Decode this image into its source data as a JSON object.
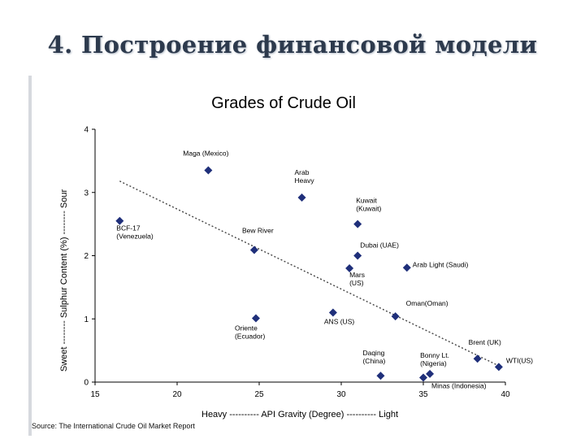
{
  "slide": {
    "title": "4. Построение финансовой модели"
  },
  "source": "Source: The International Crude Oil Market Report",
  "colors": {
    "title": "#2d3a4d",
    "marker": "#1f2f7a",
    "trendline": "#444444",
    "axis": "#000000"
  },
  "chart_data": {
    "type": "scatter",
    "title": "Grades of Crude Oil",
    "xlabel": "Heavy ---------- API Gravity (Degree) ---------- Light",
    "ylabel": "Sweet -------- Sulphur Content (%) -------- Sour",
    "xlim": [
      15,
      40
    ],
    "ylim": [
      0,
      4
    ],
    "xticks": [
      "15",
      "20",
      "25",
      "30",
      "35",
      "40"
    ],
    "yticks": [
      "0",
      "1",
      "2",
      "3",
      "4"
    ],
    "grid": false,
    "marker": "diamond",
    "trendline": {
      "style": "dotted",
      "x": [
        16.5,
        39.5
      ],
      "y": [
        3.18,
        0.27
      ]
    },
    "points": [
      {
        "label": "Maga (Mexico)",
        "x": 21.9,
        "y": 3.35
      },
      {
        "label": "Arab\nHeavy",
        "x": 27.6,
        "y": 2.92
      },
      {
        "label": "Kuwait\n(Kuwait)",
        "x": 31.0,
        "y": 2.5
      },
      {
        "label": "BCF-17\n(Venezuela)",
        "x": 16.5,
        "y": 2.55
      },
      {
        "label": "Bew River",
        "x": 24.7,
        "y": 2.09
      },
      {
        "label": "Dubai (UAE)",
        "x": 31.0,
        "y": 2.0
      },
      {
        "label": "Mars\n(US)",
        "x": 30.5,
        "y": 1.8
      },
      {
        "label": "Arab Light (Saudi)",
        "x": 34.0,
        "y": 1.81
      },
      {
        "label": "Oriente\n(Ecuador)",
        "x": 24.8,
        "y": 1.01
      },
      {
        "label": "ANS (US)",
        "x": 29.5,
        "y": 1.1
      },
      {
        "label": "Oman(Oman)",
        "x": 33.3,
        "y": 1.04
      },
      {
        "label": "Brent (UK)",
        "x": 38.3,
        "y": 0.37
      },
      {
        "label": "Daqing\n(China)",
        "x": 32.4,
        "y": 0.1
      },
      {
        "label": "Bonny Lt.\n(Nigeria)",
        "x": 35.4,
        "y": 0.13
      },
      {
        "label": "Minas (Indonesia)",
        "x": 35.0,
        "y": 0.07
      },
      {
        "label": "WTI(US)",
        "x": 39.6,
        "y": 0.24
      }
    ]
  }
}
